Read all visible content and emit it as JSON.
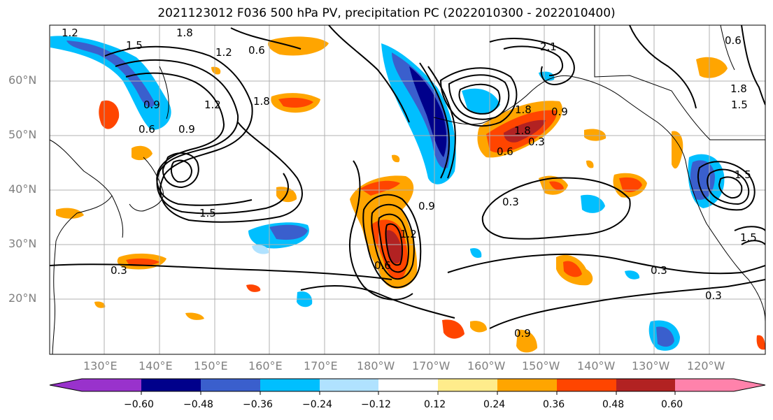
{
  "title": "2021123012 F036 500 hPa PV, precipitation PC (2022010300 - 2022010400)",
  "lat_labels": [
    "60°N",
    "50°N",
    "40°N",
    "30°N",
    "20°N"
  ],
  "lon_labels": [
    "130°E",
    "140°E",
    "150°E",
    "160°E",
    "170°E",
    "180°W",
    "170°W",
    "160°W",
    "150°W",
    "140°W",
    "130°W",
    "120°W"
  ],
  "contour_labels": [
    "1.2",
    "1.8",
    "1.5",
    "0.6",
    "1.2",
    "0.9",
    "0.6",
    "0.9",
    "1.2",
    "1.8",
    "1.5",
    "0.3",
    "0.6",
    "1.2",
    "0.9",
    "1.8",
    "0.6",
    "2.1",
    "1.8",
    "0.9",
    "0.3",
    "0.6",
    "1.8",
    "1.5",
    "1.5",
    "0.3",
    "0.3",
    "0.3",
    "1.5",
    "0.9"
  ],
  "colorbar": {
    "ticks": [
      "−0.60",
      "−0.48",
      "−0.36",
      "−0.24",
      "−0.12",
      "0.12",
      "0.24",
      "0.36",
      "0.48",
      "0.60"
    ],
    "colors": [
      "#9932cc",
      "#00008b",
      "#3a5fcd",
      "#00bfff",
      "#b0e2ff",
      "#ffffff",
      "#ffec8b",
      "#ffa500",
      "#ff4500",
      "#b22222",
      "#ff82ab"
    ]
  }
}
